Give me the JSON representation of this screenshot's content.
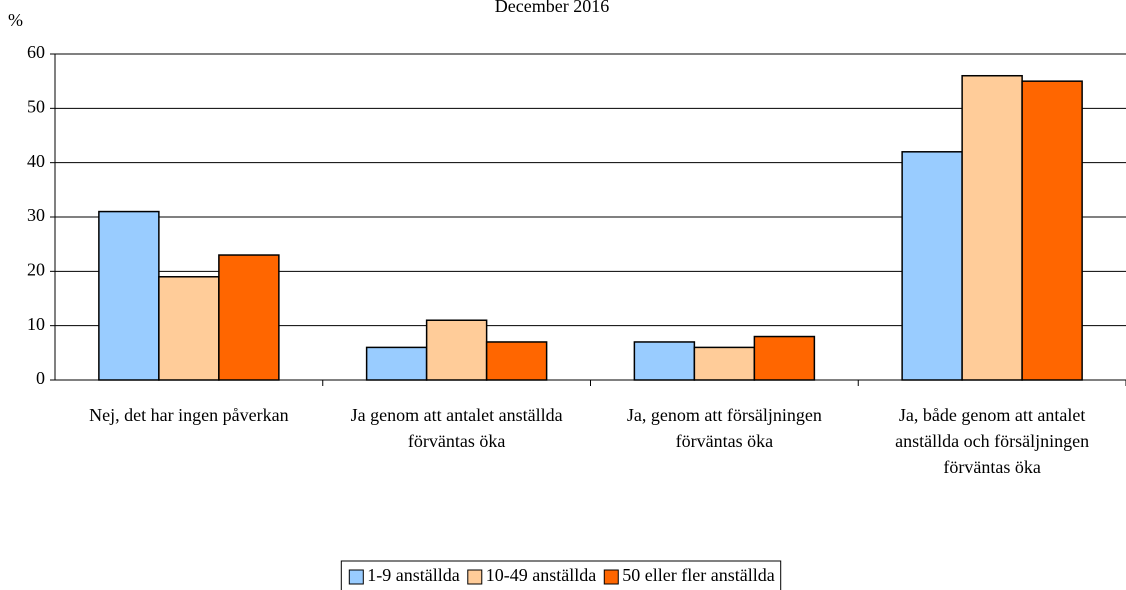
{
  "chart_data": {
    "type": "bar",
    "title": "December 2016",
    "y_label": "%",
    "categories": [
      "Nej, det har ingen påverkan",
      "Ja genom att antalet anställda förväntas öka",
      "Ja, genom att försäljningen förväntas öka",
      "Ja, både genom att antalet anställda och försäljningen förväntas öka"
    ],
    "series": [
      {
        "name": "1-9 anställda",
        "color": "#99ccff",
        "values": [
          31,
          6,
          7,
          42
        ]
      },
      {
        "name": "10-49 anställda",
        "color": "#ffcc99",
        "values": [
          19,
          11,
          6,
          56
        ]
      },
      {
        "name": "50 eller fler anställda",
        "color": "#ff6600",
        "values": [
          23,
          7,
          8,
          55
        ]
      }
    ],
    "ylim": [
      0,
      60
    ],
    "yticks": [
      0,
      10,
      20,
      30,
      40,
      50,
      60
    ],
    "grid": true,
    "legend": "bottom"
  }
}
